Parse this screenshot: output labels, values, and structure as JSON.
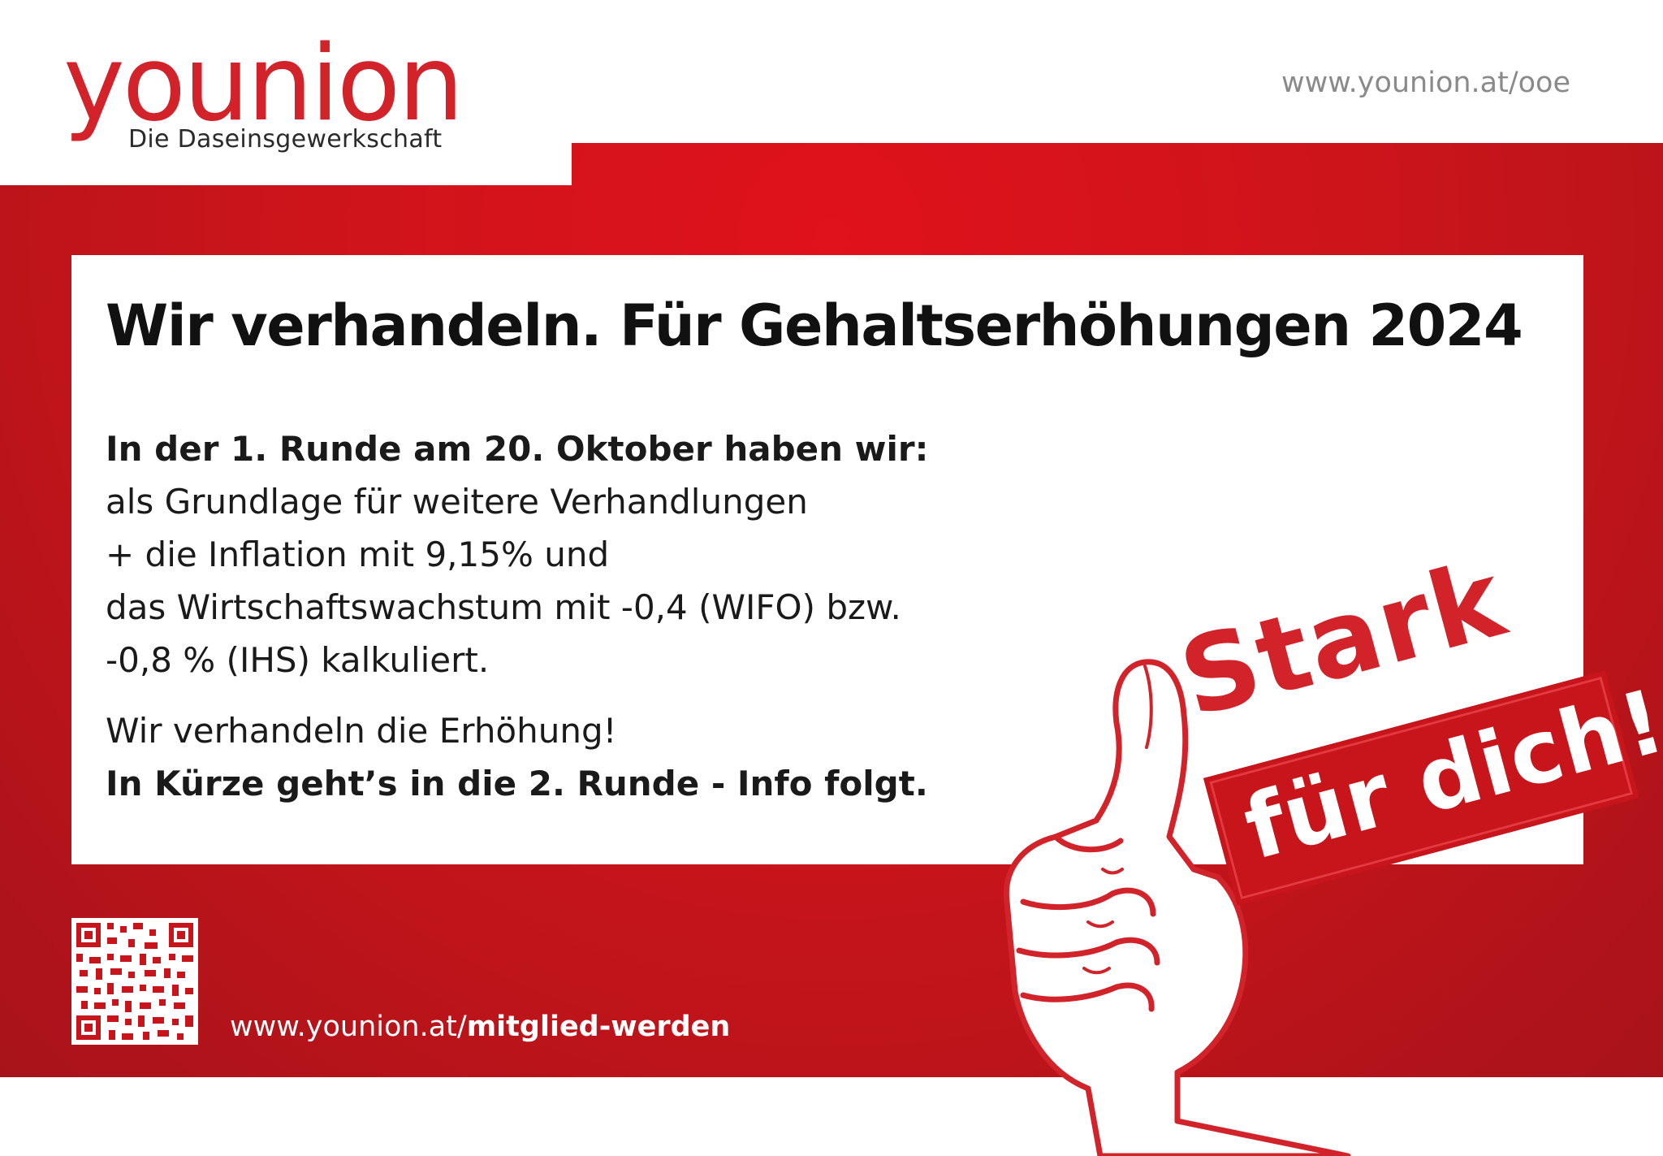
{
  "logo": {
    "wordmark": "younion",
    "tagline": "Die Daseinsgewerkschaft"
  },
  "header": {
    "url": "www.younion.at/ooe"
  },
  "content": {
    "headline": "Wir verhandeln. Für Gehaltserhöhungen 2024",
    "paragraph1": [
      "In der 1. Runde am 20. Oktober haben wir:",
      "als Grundlage für weitere Verhandlungen",
      "+ die Inflation mit 9,15% und",
      "das Wirtschaftswachstum mit -0,4 (WIFO) bzw.",
      "-0,8 % (IHS) kalkuliert."
    ],
    "paragraph2": [
      "Wir verhandeln die Erhöhung!",
      "In Kürze geht’s in die 2. Runde - Info folgt."
    ]
  },
  "footer": {
    "url_prefix": "www.younion.at/",
    "url_bold": "mitglied-werden"
  },
  "stamp": {
    "line1": "Stark",
    "line2": "für dich!"
  },
  "colors": {
    "brand_red": "#d2232a",
    "dark_red": "#a8131a",
    "white": "#ffffff",
    "text": "#111111"
  }
}
